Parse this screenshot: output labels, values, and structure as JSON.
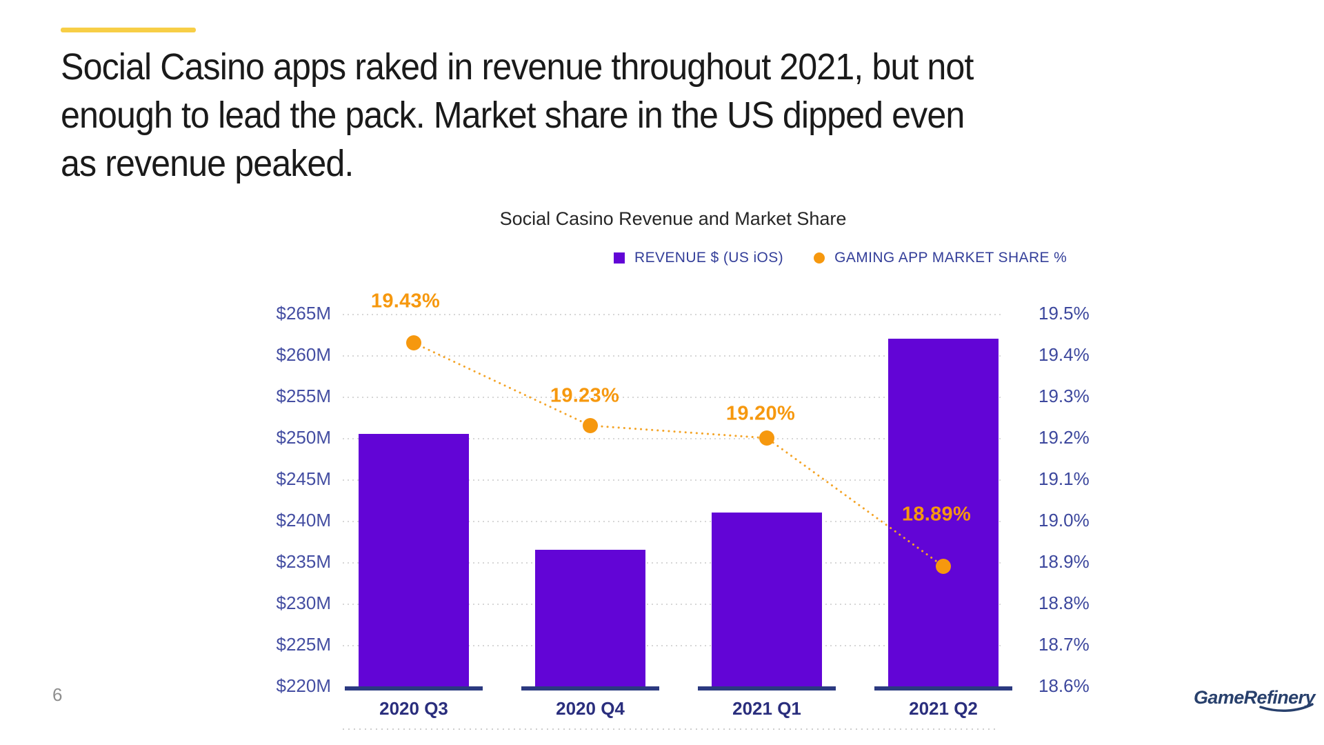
{
  "slide": {
    "accent_color": "#F7CE46",
    "title_lines": [
      "Social Casino apps raked in revenue throughout 2021, but not",
      "enough to lead the pack. Market share in the US dipped even",
      "as revenue peaked."
    ],
    "page_number": "6",
    "footer_logo": "GameRefinery"
  },
  "chart_data": {
    "type": "bar",
    "subtype": "combo-bar-line",
    "title": "Social Casino Revenue and Market Share",
    "categories": [
      "2020 Q3",
      "2020 Q4",
      "2021 Q1",
      "2021 Q2"
    ],
    "series": [
      {
        "name": "REVENUE $ (US iOS)",
        "type": "bar",
        "unit": "USD millions",
        "values": [
          250.5,
          236.5,
          241.0,
          262.0
        ]
      },
      {
        "name": "GAMING APP MARKET SHARE %",
        "type": "line",
        "style": "dotted",
        "unit": "%",
        "values": [
          19.43,
          19.23,
          19.2,
          18.89
        ],
        "point_labels": [
          "19.43%",
          "19.23%",
          "19.20%",
          "18.89%"
        ]
      }
    ],
    "left_axis": {
      "min": 220,
      "max": 265,
      "step": 5,
      "ticks": [
        "$265M",
        "$260M",
        "$255M",
        "$250M",
        "$245M",
        "$240M",
        "$235M",
        "$230M",
        "$225M",
        "$220M"
      ]
    },
    "right_axis": {
      "min": 18.6,
      "max": 19.5,
      "step": 0.1,
      "ticks": [
        "19.5%",
        "19.4%",
        "19.3%",
        "19.2%",
        "19.1%",
        "19.0%",
        "18.9%",
        "18.8%",
        "18.7%",
        "18.6%"
      ]
    },
    "legend": [
      {
        "label": "REVENUE $ (US iOS)",
        "marker": "square",
        "color": "#6205D6"
      },
      {
        "label": "GAMING APP MARKET SHARE %",
        "marker": "circle",
        "color": "#F6980E"
      }
    ],
    "grid": "horizontal-dotted",
    "grid_color": "#D6D6D6",
    "baseline_color": "#2B3A80",
    "line_color": "#F4A427",
    "legend_position": "top-right"
  }
}
